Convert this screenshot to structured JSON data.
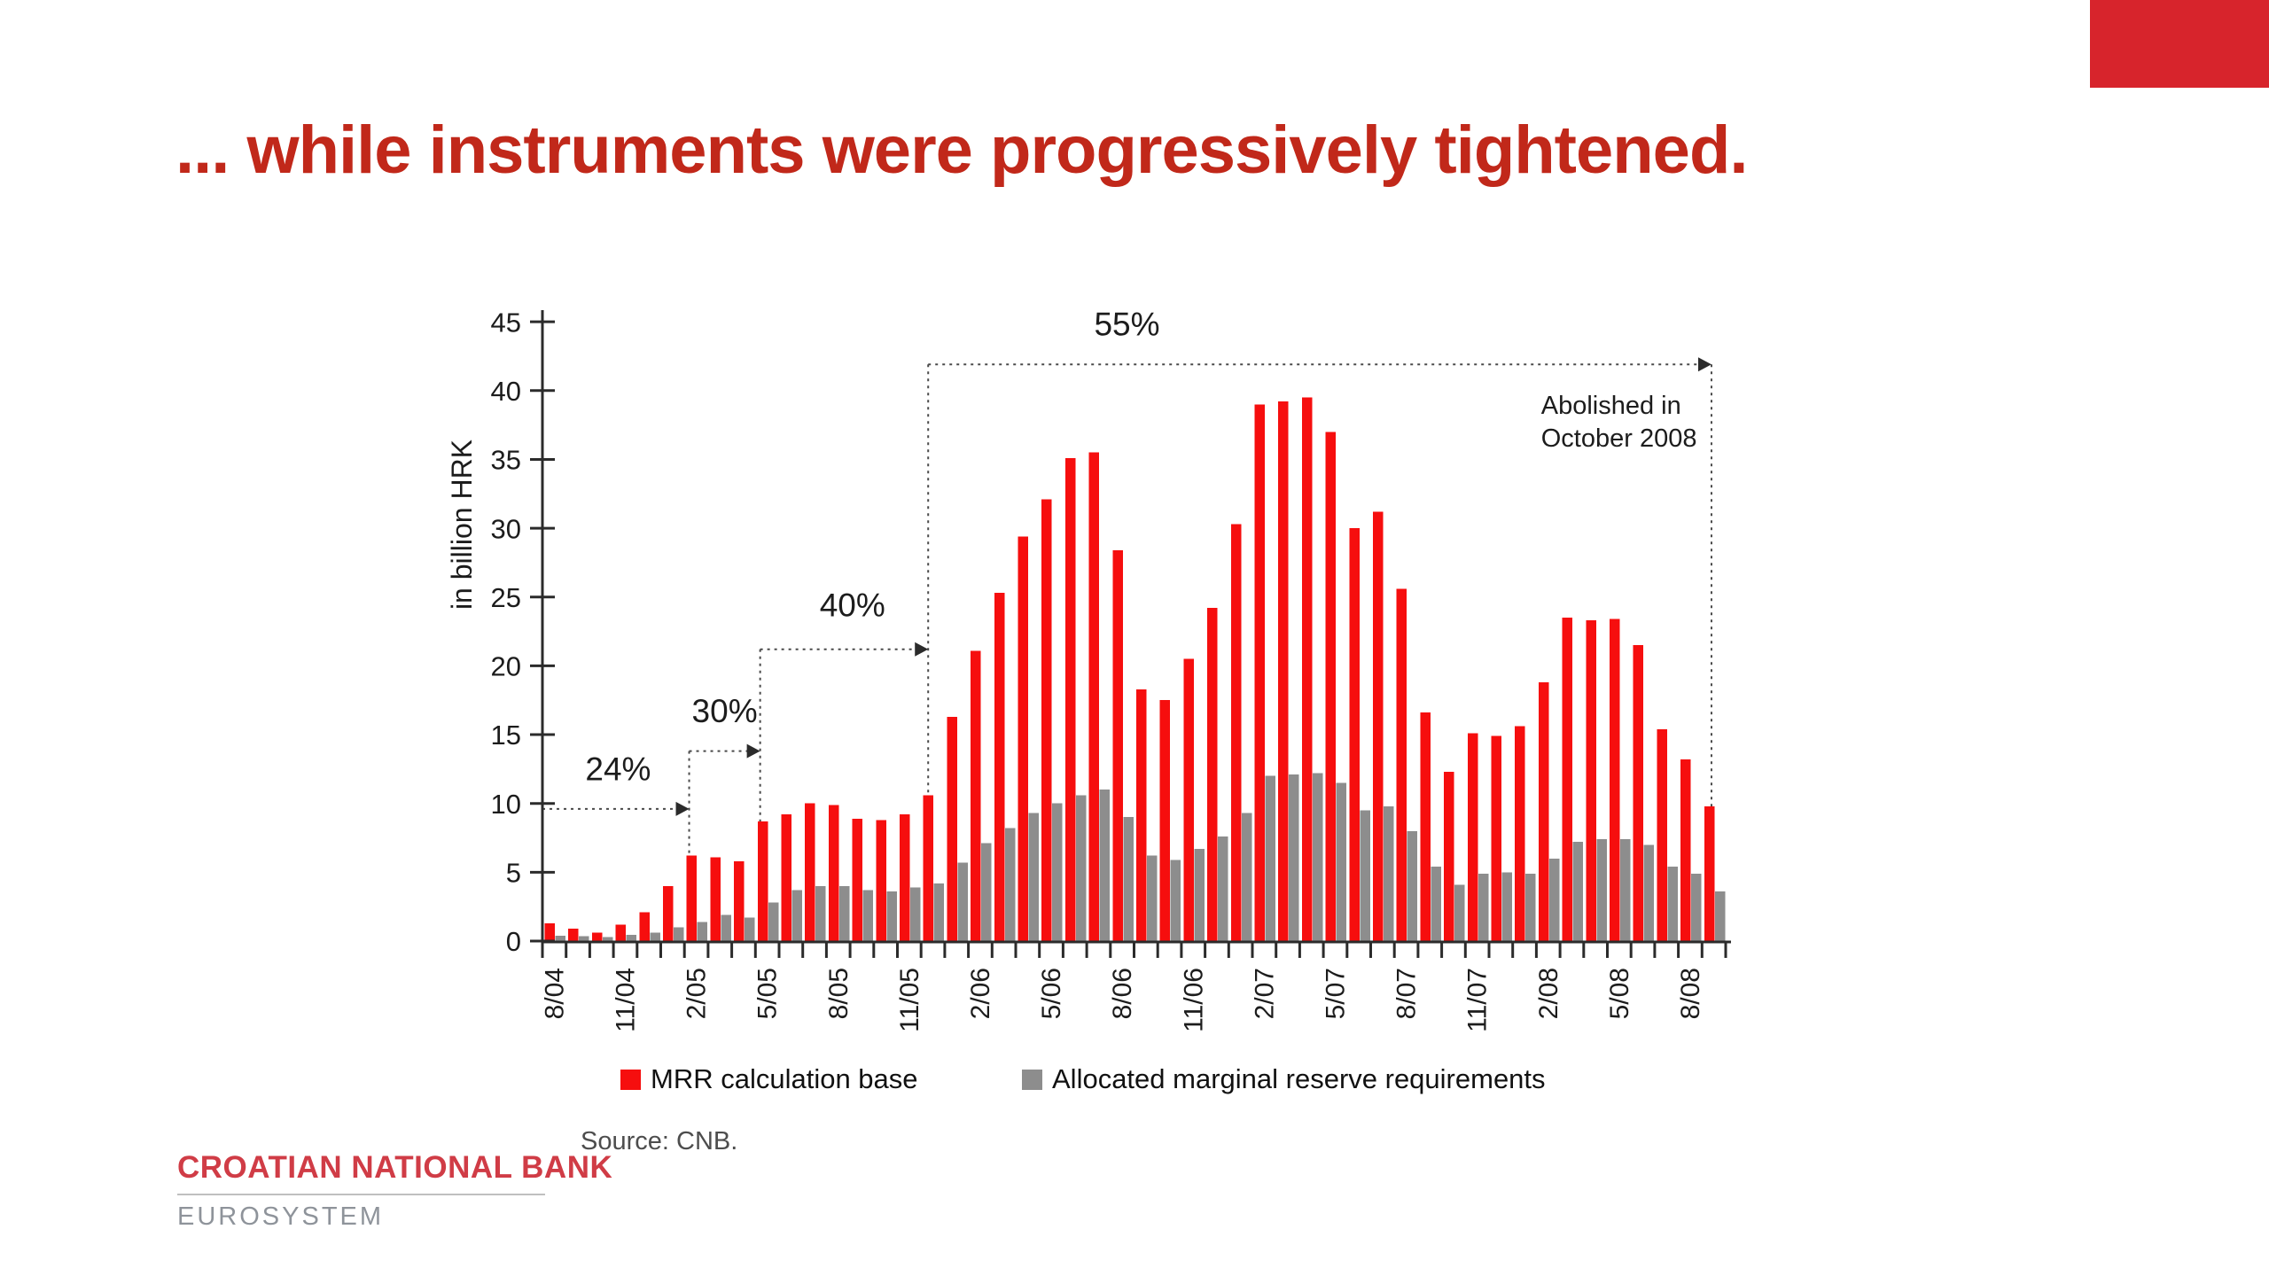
{
  "slide": {
    "title": "... while instruments were progressively tightened."
  },
  "colors": {
    "accent_red": "#d7242c",
    "title_red": "#c1281a",
    "bar_red": "#f60e0e",
    "bar_gray": "#8d8d8d",
    "axis_dark": "#2b2b2b",
    "dotted_line": "#4a4a4a",
    "footer_red": "#d03c46",
    "footer_gray": "#8e939a"
  },
  "chart_data": {
    "type": "bar",
    "title": "",
    "xlabel": "",
    "ylabel": "in billion HRK",
    "ylim": [
      0,
      45
    ],
    "yticks": [
      0,
      5,
      10,
      15,
      20,
      25,
      30,
      35,
      40,
      45
    ],
    "grid": false,
    "legend_position": "bottom",
    "xtick_label_every": 3,
    "categories": [
      "8/04",
      "9/04",
      "10/04",
      "11/04",
      "12/04",
      "1/05",
      "2/05",
      "3/05",
      "4/05",
      "5/05",
      "6/05",
      "7/05",
      "8/05",
      "9/05",
      "10/05",
      "11/05",
      "12/05",
      "1/06",
      "2/06",
      "3/06",
      "4/06",
      "5/06",
      "6/06",
      "7/06",
      "8/06",
      "9/06",
      "10/06",
      "11/06",
      "12/06",
      "1/07",
      "2/07",
      "3/07",
      "4/07",
      "5/07",
      "6/07",
      "7/07",
      "8/07",
      "9/07",
      "10/07",
      "11/07",
      "12/07",
      "1/08",
      "2/08",
      "3/08",
      "4/08",
      "5/08",
      "6/08",
      "7/08",
      "8/08",
      "9/08"
    ],
    "series": [
      {
        "name": "MRR calculation base",
        "color": "#f60e0e",
        "values": [
          1.3,
          0.9,
          0.6,
          1.2,
          2.1,
          4.0,
          6.2,
          6.1,
          5.8,
          8.7,
          9.2,
          10.0,
          9.9,
          8.9,
          8.8,
          9.2,
          10.6,
          16.3,
          21.1,
          25.3,
          29.4,
          32.1,
          35.1,
          35.5,
          28.4,
          18.3,
          17.5,
          20.5,
          24.2,
          30.3,
          39.0,
          39.2,
          39.5,
          37.0,
          30.0,
          31.2,
          25.6,
          16.6,
          12.3,
          15.1,
          14.9,
          15.6,
          18.8,
          23.5,
          23.3,
          23.4,
          21.5,
          15.4,
          13.2,
          9.8
        ]
      },
      {
        "name": "Allocated marginal reserve requirements",
        "color": "#8d8d8d",
        "values": [
          0.4,
          0.35,
          0.3,
          0.45,
          0.6,
          1.0,
          1.4,
          1.9,
          1.7,
          2.8,
          3.7,
          4.0,
          4.0,
          3.7,
          3.6,
          3.9,
          4.2,
          5.7,
          7.1,
          8.2,
          9.3,
          10.0,
          10.6,
          11.0,
          9.0,
          6.2,
          5.9,
          6.7,
          7.6,
          9.3,
          12.0,
          12.1,
          12.2,
          11.5,
          9.5,
          9.8,
          8.0,
          5.4,
          4.1,
          4.9,
          5.0,
          4.9,
          6.0,
          7.2,
          7.4,
          7.4,
          7.0,
          5.4,
          4.9,
          3.6
        ]
      }
    ],
    "rate_steps": [
      {
        "label": "24%",
        "level": 9.6,
        "start_index": 0,
        "end_index": 6.2,
        "label_index": 3.2,
        "label_level": 11.7
      },
      {
        "label": "30%",
        "level": 13.8,
        "start_index": 6.2,
        "end_index": 9.2,
        "label_index": 7.7,
        "label_level": 15.9
      },
      {
        "label": "40%",
        "level": 21.2,
        "start_index": 9.2,
        "end_index": 16.3,
        "label_index": 13.1,
        "label_level": 23.6
      },
      {
        "label": "55%",
        "level": 41.9,
        "start_index": 16.3,
        "end_index": 49.4,
        "label_index": 24.7,
        "label_level": 44.0
      }
    ],
    "connectors": [
      {
        "x_index": 6.2,
        "top_level": 13.8
      },
      {
        "x_index": 9.2,
        "top_level": 21.2
      },
      {
        "x_index": 16.3,
        "top_level": 41.9
      },
      {
        "x_index": 49.4,
        "top_level": 41.9
      }
    ],
    "note": {
      "lines": [
        "Abolished in",
        "October 2008"
      ],
      "x_index": 42.2,
      "top_level": 38.3
    }
  },
  "source_note": "Source: CNB.",
  "footer": {
    "bank": "CROATIAN NATIONAL BANK",
    "subtitle": "EUROSYSTEM"
  }
}
